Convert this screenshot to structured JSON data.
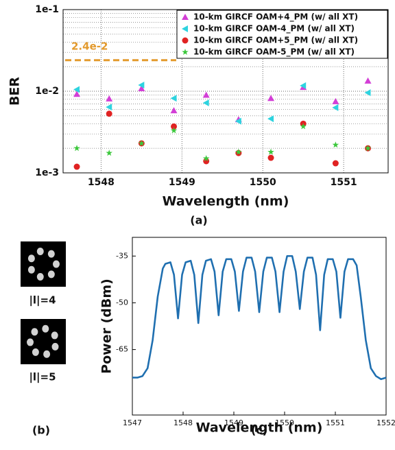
{
  "chart_data": [
    {
      "type": "scatter",
      "caption": "(a)",
      "x_label": "Wavelength (nm)",
      "y_label": "BER",
      "log_y": true,
      "grid": true,
      "minor_grid": true,
      "legend": "upper right",
      "xlim": [
        1547.53,
        1551.55
      ],
      "ylim": [
        0.001,
        0.1
      ],
      "xticks": [
        1548,
        1549,
        1550,
        1551
      ],
      "yticks": [
        {
          "value": 0.001,
          "label": "1e-3"
        },
        {
          "value": 0.01,
          "label": "1e-2"
        },
        {
          "value": 0.1,
          "label": "1e-1"
        }
      ],
      "threshold": {
        "value": 0.024,
        "label": "2.4e-2",
        "color": "#e39a2d"
      },
      "x": [
        1547.7,
        1548.1,
        1548.5,
        1548.9,
        1549.3,
        1549.7,
        1550.1,
        1550.5,
        1550.9,
        1551.3
      ],
      "series": [
        {
          "name": "10-km GIRCF OAM+4_PM (w/ all XT)",
          "color": "#d33fd6",
          "marker": "triangle-up",
          "values": [
            0.0092,
            0.0081,
            0.0108,
            0.0058,
            0.009,
            0.0045,
            0.0082,
            0.0112,
            0.0075,
            0.0134
          ]
        },
        {
          "name": "10-km GIRCF OAM-4_PM (w/ all XT)",
          "color": "#2ed3df",
          "marker": "triangle-left",
          "values": [
            0.0105,
            0.0064,
            0.0119,
            0.0082,
            0.0072,
            0.0043,
            0.0046,
            0.0117,
            0.0063,
            0.0096
          ]
        },
        {
          "name": "10-km GIRCF OAM+5_PM (w/ all XT)",
          "color": "#e02222",
          "marker": "circle",
          "values": [
            0.00119,
            0.0053,
            0.0023,
            0.0037,
            0.00139,
            0.00175,
            0.00153,
            0.004,
            0.00131,
            0.002
          ]
        },
        {
          "name": "10-km GIRCF OAM-5_PM (w/ all XT)",
          "color": "#3cc83c",
          "marker": "star",
          "values": [
            0.002,
            0.00175,
            0.0023,
            0.0033,
            0.0015,
            0.0018,
            0.0018,
            0.0037,
            0.0022,
            0.002
          ]
        }
      ]
    },
    {
      "type": "line",
      "caption": "(c)",
      "x_label": "Wavelength (nm)",
      "y_label": "Power (dBm)",
      "grid": false,
      "xlim": [
        1547,
        1552
      ],
      "ylim": [
        -86,
        -29
      ],
      "xticks": [
        1547,
        1548,
        1549,
        1550,
        1551,
        1552
      ],
      "yticks": [
        -35,
        -50,
        -65
      ],
      "x": [
        1547.0,
        1547.1,
        1547.2,
        1547.3,
        1547.4,
        1547.5,
        1547.6,
        1547.65,
        1547.75,
        1547.82,
        1547.9,
        1547.98,
        1548.05,
        1548.15,
        1548.22,
        1548.3,
        1548.38,
        1548.45,
        1548.55,
        1548.62,
        1548.7,
        1548.78,
        1548.85,
        1548.95,
        1549.02,
        1549.1,
        1549.18,
        1549.25,
        1549.35,
        1549.42,
        1549.5,
        1549.58,
        1549.65,
        1549.75,
        1549.82,
        1549.9,
        1549.98,
        1550.05,
        1550.15,
        1550.22,
        1550.3,
        1550.38,
        1550.45,
        1550.55,
        1550.62,
        1550.7,
        1550.78,
        1550.85,
        1550.95,
        1551.02,
        1551.1,
        1551.18,
        1551.25,
        1551.35,
        1551.42,
        1551.5,
        1551.6,
        1551.7,
        1551.8,
        1551.9,
        1552.0
      ],
      "series": [
        {
          "color": "#1f6fb0",
          "values": [
            -74,
            -74,
            -73.5,
            -71,
            -62,
            -48,
            -39,
            -37.5,
            -37,
            -41,
            -55,
            -41,
            -37,
            -36.5,
            -41,
            -56.5,
            -41,
            -36.5,
            -36,
            -40,
            -54,
            -40,
            -36,
            -36,
            -40,
            -52.6,
            -40,
            -35.5,
            -35.5,
            -40,
            -53,
            -40,
            -35.5,
            -35.5,
            -40,
            -53,
            -40,
            -35,
            -35,
            -40,
            -52,
            -40,
            -35.5,
            -35.5,
            -41,
            -58.8,
            -41,
            -36,
            -36,
            -40,
            -54.8,
            -40,
            -36,
            -36,
            -38,
            -48,
            -62,
            -71,
            -73.5,
            -74.5,
            -74
          ]
        }
      ]
    }
  ],
  "mode_images": {
    "labels": [
      "|l|=4",
      "|l|=5"
    ],
    "caption": "(b)"
  }
}
